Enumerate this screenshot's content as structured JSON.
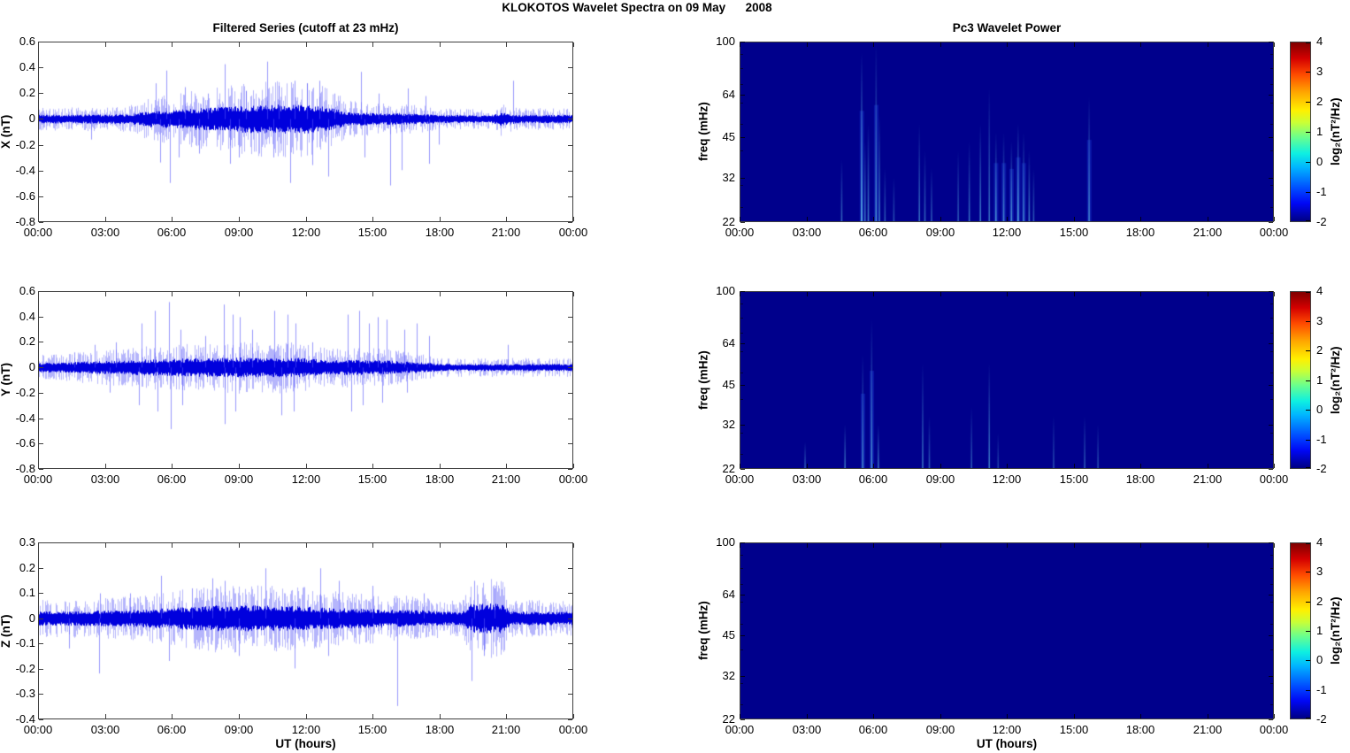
{
  "title": "KLOKOTOS Wavelet Spectra on 09 May      2008",
  "chart_data": {
    "type": [
      "line",
      "line",
      "line",
      "heatmap",
      "heatmap",
      "heatmap"
    ],
    "x_axis": {
      "label": "UT (hours)",
      "range_hours": [
        0,
        24
      ],
      "tick_labels": [
        "00:00",
        "03:00",
        "06:00",
        "09:00",
        "12:00",
        "15:00",
        "18:00",
        "21:00",
        "00:00"
      ]
    },
    "left_column": {
      "title": "Filtered Series (cutoff at 23 mHz)",
      "line_color": "#0000DD",
      "panels": [
        {
          "id": "X",
          "ylabel": "X (nT)",
          "ylim": [
            -0.8,
            0.6
          ],
          "ytick_labels": [
            "0.6",
            "0.4",
            "0.2",
            "0",
            "-0.2",
            "-0.4",
            "-0.6",
            "-0.8"
          ],
          "noise_envelope": [
            [
              0,
              0.035
            ],
            [
              4,
              0.04
            ],
            [
              5,
              0.07
            ],
            [
              6,
              0.08
            ],
            [
              8,
              0.1
            ],
            [
              9,
              0.11
            ],
            [
              10,
              0.12
            ],
            [
              12,
              0.12
            ],
            [
              13,
              0.1
            ],
            [
              13.8,
              0.06
            ],
            [
              15,
              0.05
            ],
            [
              17,
              0.045
            ],
            [
              18,
              0.035
            ],
            [
              20.3,
              0.03
            ],
            [
              20.8,
              0.055
            ],
            [
              21.5,
              0.035
            ],
            [
              24,
              0.035
            ]
          ],
          "spikes": [
            [
              2.35,
              -0.16
            ],
            [
              5.25,
              0.28
            ],
            [
              5.45,
              -0.34
            ],
            [
              5.75,
              0.38
            ],
            [
              5.9,
              -0.5
            ],
            [
              6.3,
              -0.3
            ],
            [
              6.55,
              0.25
            ],
            [
              7.2,
              -0.27
            ],
            [
              7.6,
              0.2
            ],
            [
              8.35,
              0.43
            ],
            [
              8.6,
              -0.35
            ],
            [
              9.0,
              -0.3
            ],
            [
              9.3,
              0.22
            ],
            [
              10.25,
              0.45
            ],
            [
              10.55,
              -0.3
            ],
            [
              10.8,
              0.26
            ],
            [
              11.3,
              -0.5
            ],
            [
              11.5,
              0.3
            ],
            [
              12.05,
              0.28
            ],
            [
              12.3,
              -0.36
            ],
            [
              12.6,
              0.3
            ],
            [
              13.0,
              -0.45
            ],
            [
              13.3,
              0.2
            ],
            [
              14.5,
              0.37
            ],
            [
              14.65,
              -0.3
            ],
            [
              15.3,
              0.2
            ],
            [
              15.8,
              -0.52
            ],
            [
              16.3,
              -0.4
            ],
            [
              16.6,
              0.24
            ],
            [
              17.4,
              0.18
            ],
            [
              17.55,
              -0.35
            ],
            [
              18.0,
              -0.2
            ],
            [
              21.35,
              0.3
            ]
          ]
        },
        {
          "id": "Y",
          "ylabel": "Y (nT)",
          "ylim": [
            -0.8,
            0.6
          ],
          "ytick_labels": [
            "0.6",
            "0.4",
            "0.2",
            "0",
            "-0.2",
            "-0.4",
            "-0.6",
            "-0.8"
          ],
          "noise_envelope": [
            [
              0,
              0.04
            ],
            [
              1.5,
              0.045
            ],
            [
              2.5,
              0.055
            ],
            [
              4,
              0.06
            ],
            [
              5,
              0.07
            ],
            [
              6,
              0.075
            ],
            [
              8,
              0.08
            ],
            [
              9,
              0.085
            ],
            [
              10,
              0.08
            ],
            [
              11.5,
              0.085
            ],
            [
              12.5,
              0.07
            ],
            [
              13,
              0.06
            ],
            [
              14,
              0.065
            ],
            [
              15.5,
              0.06
            ],
            [
              16.5,
              0.05
            ],
            [
              17.5,
              0.04
            ],
            [
              18,
              0.03
            ],
            [
              24,
              0.03
            ]
          ],
          "spikes": [
            [
              1.6,
              0.12
            ],
            [
              2.5,
              0.18
            ],
            [
              3.2,
              -0.2
            ],
            [
              3.45,
              0.2
            ],
            [
              4.5,
              -0.3
            ],
            [
              4.6,
              0.35
            ],
            [
              5.2,
              0.45
            ],
            [
              5.35,
              -0.35
            ],
            [
              5.85,
              0.52
            ],
            [
              5.95,
              -0.49
            ],
            [
              6.35,
              0.3
            ],
            [
              6.45,
              -0.3
            ],
            [
              7.5,
              0.25
            ],
            [
              8.3,
              0.5
            ],
            [
              8.35,
              -0.45
            ],
            [
              8.7,
              0.42
            ],
            [
              8.85,
              -0.35
            ],
            [
              9.05,
              0.4
            ],
            [
              9.6,
              0.3
            ],
            [
              10.6,
              0.45
            ],
            [
              10.9,
              -0.38
            ],
            [
              11.2,
              0.42
            ],
            [
              11.45,
              -0.35
            ],
            [
              11.55,
              0.35
            ],
            [
              12.3,
              0.2
            ],
            [
              13.9,
              0.42
            ],
            [
              14.05,
              -0.35
            ],
            [
              14.4,
              0.45
            ],
            [
              14.55,
              -0.3
            ],
            [
              14.85,
              0.35
            ],
            [
              15.25,
              0.4
            ],
            [
              15.45,
              -0.28
            ],
            [
              15.65,
              0.38
            ],
            [
              16.45,
              0.3
            ],
            [
              16.55,
              -0.2
            ],
            [
              17.0,
              0.35
            ],
            [
              17.55,
              0.25
            ],
            [
              21.1,
              0.18
            ]
          ]
        },
        {
          "id": "Z",
          "ylabel": "Z (nT)",
          "ylim": [
            -0.4,
            0.3
          ],
          "ytick_labels": [
            "0.3",
            "0.2",
            "0.1",
            "0",
            "-0.1",
            "-0.2",
            "-0.3",
            "-0.4"
          ],
          "noise_envelope": [
            [
              0,
              0.03
            ],
            [
              2,
              0.032
            ],
            [
              4,
              0.035
            ],
            [
              6,
              0.045
            ],
            [
              7,
              0.05
            ],
            [
              8,
              0.055
            ],
            [
              10,
              0.055
            ],
            [
              12,
              0.05
            ],
            [
              13,
              0.045
            ],
            [
              15,
              0.04
            ],
            [
              17,
              0.035
            ],
            [
              19,
              0.028
            ],
            [
              19.4,
              0.06
            ],
            [
              20.8,
              0.065
            ],
            [
              21.2,
              0.03
            ],
            [
              24,
              0.028
            ]
          ],
          "spikes": [
            [
              1.35,
              -0.12
            ],
            [
              2.7,
              -0.22
            ],
            [
              2.75,
              0.1
            ],
            [
              4.1,
              0.1
            ],
            [
              5.5,
              0.17
            ],
            [
              5.85,
              -0.17
            ],
            [
              6.9,
              0.12
            ],
            [
              7.8,
              0.16
            ],
            [
              8.35,
              0.15
            ],
            [
              9.0,
              -0.15
            ],
            [
              10.2,
              0.2
            ],
            [
              11.5,
              -0.2
            ],
            [
              12.65,
              0.2
            ],
            [
              13.0,
              -0.15
            ],
            [
              13.5,
              0.15
            ],
            [
              15.0,
              0.13
            ],
            [
              16.1,
              -0.35
            ],
            [
              17.3,
              0.1
            ],
            [
              19.45,
              -0.25
            ],
            [
              19.6,
              0.15
            ],
            [
              20.0,
              -0.15
            ],
            [
              20.5,
              0.12
            ]
          ]
        }
      ]
    },
    "right_column": {
      "title": "Pc3 Wavelet Power",
      "ylabel": "freq (mHz)",
      "yscale": "log",
      "ylim_mhz": [
        22,
        100
      ],
      "ytick_values": [
        100,
        64,
        45,
        32,
        22
      ],
      "ytick_labels": [
        "100",
        "64",
        "45",
        "32",
        "22"
      ],
      "yminor_tick_values": [
        90,
        80,
        70,
        60,
        50,
        40,
        30,
        25
      ],
      "background_color": "#00008C",
      "colorbar": {
        "label": "log₂(nT²/Hz)",
        "range": [
          -2,
          4
        ],
        "tick_labels": [
          "4",
          "3",
          "2",
          "1",
          "0",
          "-1",
          "-2"
        ],
        "colormap": "jet"
      },
      "panels": [
        {
          "id": "X",
          "events": [
            [
              4.55,
              0.35,
              0.45
            ],
            [
              5.45,
              0.95,
              0.85
            ],
            [
              5.6,
              0.45,
              0.5
            ],
            [
              5.75,
              0.55,
              0.55
            ],
            [
              6.1,
              1.0,
              0.65
            ],
            [
              6.25,
              0.6,
              0.55
            ],
            [
              6.5,
              0.3,
              0.4
            ],
            [
              6.9,
              0.25,
              0.35
            ],
            [
              8.05,
              0.55,
              0.5
            ],
            [
              8.3,
              0.4,
              0.45
            ],
            [
              8.6,
              0.3,
              0.4
            ],
            [
              9.8,
              0.4,
              0.4
            ],
            [
              10.3,
              0.45,
              0.5
            ],
            [
              10.8,
              0.55,
              0.55
            ],
            [
              11.2,
              0.75,
              0.5
            ],
            [
              11.5,
              0.5,
              0.65
            ],
            [
              11.85,
              0.5,
              0.6
            ],
            [
              12.2,
              0.45,
              0.65
            ],
            [
              12.5,
              0.55,
              0.75
            ],
            [
              12.75,
              0.5,
              0.6
            ],
            [
              13.0,
              0.4,
              0.55
            ],
            [
              13.2,
              0.3,
              0.4
            ],
            [
              15.7,
              0.7,
              0.6
            ]
          ]
        },
        {
          "id": "Y",
          "events": [
            [
              2.9,
              0.15,
              0.4
            ],
            [
              4.7,
              0.25,
              0.5
            ],
            [
              5.5,
              0.65,
              0.6
            ],
            [
              5.9,
              0.85,
              0.65
            ],
            [
              6.2,
              0.25,
              0.5
            ],
            [
              8.2,
              0.6,
              0.5
            ],
            [
              8.5,
              0.3,
              0.4
            ],
            [
              10.4,
              0.35,
              0.4
            ],
            [
              11.2,
              0.6,
              0.55
            ],
            [
              11.6,
              0.2,
              0.3
            ],
            [
              14.1,
              0.3,
              0.35
            ],
            [
              15.5,
              0.3,
              0.4
            ],
            [
              16.1,
              0.25,
              0.35
            ]
          ]
        },
        {
          "id": "Z",
          "events": []
        }
      ]
    }
  }
}
